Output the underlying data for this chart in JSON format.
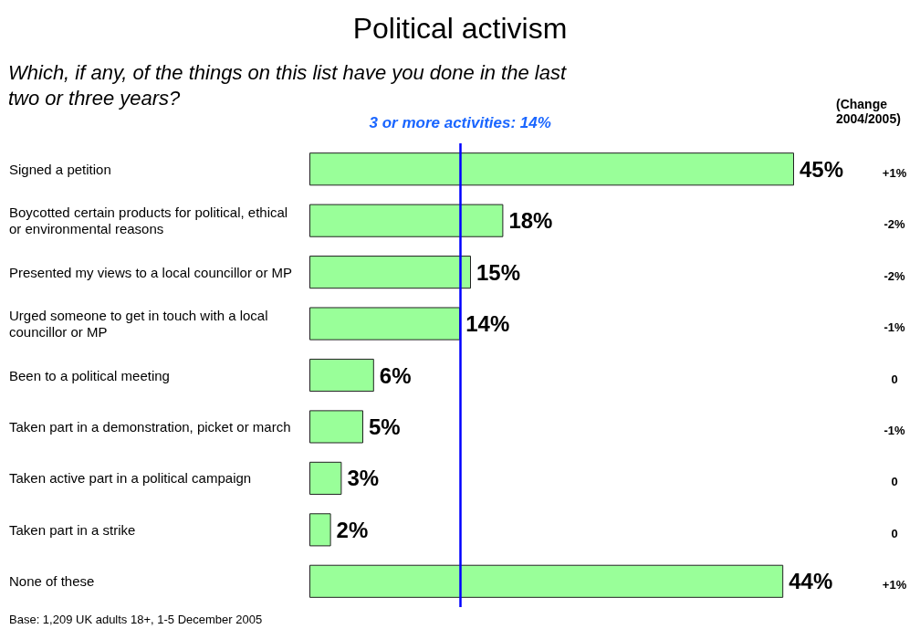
{
  "chart_data": {
    "type": "bar",
    "orientation": "horizontal",
    "title": "Political activism",
    "subtitle": "Which, if any, of the things on this list have you done in the last two or three years?",
    "categories": [
      "Signed a petition",
      "Boycotted certain products for political, ethical or environmental reasons",
      "Presented my views to a local councillor or MP",
      "Urged someone to get in touch with a local councillor or MP",
      "Been to a political meeting",
      "Taken part in a demonstration, picket or march",
      "Taken active part in a political campaign",
      "Taken part in a strike",
      "None of these"
    ],
    "values": [
      45,
      18,
      15,
      14,
      6,
      5,
      3,
      2,
      44
    ],
    "value_labels": [
      "45%",
      "18%",
      "15%",
      "14%",
      "6%",
      "5%",
      "3%",
      "2%",
      "44%"
    ],
    "color": "#99ff99",
    "ref_lines": [
      {
        "axis": "x",
        "value": 14,
        "label": "3 or more activities: 14%",
        "color": "#0000ff"
      }
    ],
    "annotations": [
      "(Change 2004/2005)",
      "+1%",
      "-2%",
      "-2%",
      "-1%",
      "0",
      "-1%",
      "0",
      "0",
      "+1%",
      "Base: 1,209 UK adults 18+, 1-5 December 2005"
    ],
    "grid": false
  }
}
